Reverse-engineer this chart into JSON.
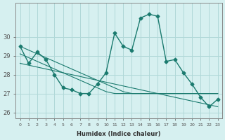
{
  "xlabel": "Humidex (Indice chaleur)",
  "ylabel": "",
  "bg_color": "#d6f0f0",
  "line_color": "#1a7a6e",
  "grid_color": "#b0d8d8",
  "x_values": [
    0,
    1,
    2,
    3,
    4,
    5,
    6,
    7,
    8,
    9,
    10,
    11,
    12,
    13,
    14,
    15,
    16,
    17,
    18,
    19,
    20,
    21,
    22,
    23
  ],
  "y_main": [
    29.5,
    28.6,
    29.2,
    28.8,
    28.0,
    27.3,
    27.2,
    27.0,
    27.0,
    27.5,
    28.1,
    30.2,
    29.5,
    29.3,
    31.0,
    31.2,
    31.1,
    28.7,
    28.8,
    28.1,
    27.5,
    26.8,
    26.3,
    26.7
  ],
  "y_reg1": [
    29.5,
    29.3,
    29.1,
    28.9,
    28.7,
    28.5,
    28.3,
    28.1,
    27.9,
    27.7,
    27.5,
    27.3,
    27.1,
    27.0,
    27.0,
    27.0,
    27.0,
    27.0,
    27.0,
    27.0,
    27.0,
    27.0,
    27.0,
    27.0
  ],
  "y_reg2": [
    28.6,
    28.5,
    28.4,
    28.3,
    28.2,
    28.1,
    28.0,
    27.9,
    27.8,
    27.7,
    27.6,
    27.5,
    27.4,
    27.3,
    27.2,
    27.1,
    27.0,
    26.9,
    26.8,
    26.7,
    26.6,
    26.5,
    26.4,
    26.3
  ],
  "y_reg3": [
    29.1,
    28.9,
    28.7,
    28.5,
    28.3,
    28.1,
    27.9,
    27.7,
    27.5,
    27.3,
    27.1,
    27.0,
    27.0,
    27.0,
    27.0,
    27.0,
    27.0,
    27.0,
    27.0,
    27.0,
    27.0,
    27.0,
    27.0,
    27.0
  ],
  "ylim": [
    25.7,
    31.8
  ],
  "xlim": [
    -0.5,
    23.5
  ],
  "yticks": [
    26,
    27,
    28,
    29,
    30
  ],
  "xtick_labels": [
    "0",
    "1",
    "2",
    "3",
    "4",
    "5",
    "6",
    "7",
    "8",
    "9",
    "10",
    "11",
    "12",
    "13",
    "14",
    "15",
    "16",
    "17",
    "18",
    "19",
    "20",
    "21",
    "22",
    "23"
  ]
}
